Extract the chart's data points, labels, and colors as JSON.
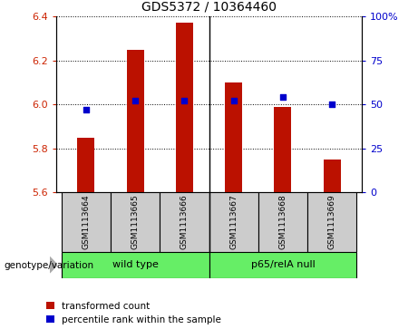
{
  "title": "GDS5372 / 10364460",
  "samples": [
    "GSM1113664",
    "GSM1113665",
    "GSM1113666",
    "GSM1113667",
    "GSM1113668",
    "GSM1113669"
  ],
  "transformed_counts": [
    5.85,
    6.25,
    6.37,
    6.1,
    5.99,
    5.75
  ],
  "percentile_ranks": [
    47,
    52,
    52,
    52,
    54,
    50
  ],
  "ymin": 5.6,
  "ymax": 6.4,
  "y_ticks": [
    5.6,
    5.8,
    6.0,
    6.2,
    6.4
  ],
  "right_y_ticks": [
    0,
    25,
    50,
    75,
    100
  ],
  "right_y_tick_labels": [
    "0",
    "25",
    "50",
    "75",
    "100%"
  ],
  "bar_color": "#bb1100",
  "dot_color": "#0000cc",
  "bar_bottom": 5.6,
  "bar_width": 0.35,
  "group1_label": "wild type",
  "group2_label": "p65/relA null",
  "group_color": "#66ee66",
  "tick_color_left": "#cc2200",
  "tick_color_right": "#0000cc",
  "bg_color": "#cccccc",
  "legend_red_label": "transformed count",
  "legend_blue_label": "percentile rank within the sample",
  "genotype_label": "genotype/variation"
}
